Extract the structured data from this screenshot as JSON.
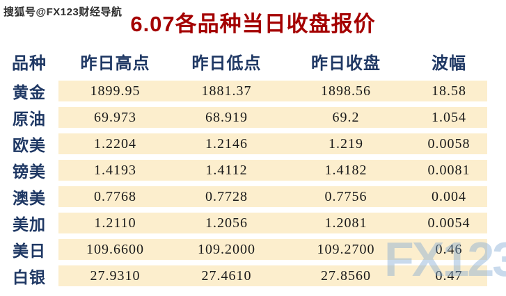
{
  "header": {
    "watermark_top": "搜狐号@FX123财经导航",
    "title": "6.07各品种当日收盘报价"
  },
  "watermark_logo": "FX123",
  "chart_data": {
    "type": "table",
    "title": "6.07各品种当日收盘报价",
    "columns": [
      "品种",
      "昨日高点",
      "昨日低点",
      "昨日收盘",
      "波幅"
    ],
    "rows": [
      [
        "黄金",
        "1899.95",
        "1881.37",
        "1898.56",
        "18.58"
      ],
      [
        "原油",
        "69.973",
        "68.919",
        "69.2",
        "1.054"
      ],
      [
        "欧美",
        "1.2204",
        "1.2146",
        "1.219",
        "0.0058"
      ],
      [
        "镑美",
        "1.4193",
        "1.4112",
        "1.4182",
        "0.0081"
      ],
      [
        "澳美",
        "0.7768",
        "0.7728",
        "0.7756",
        "0.004"
      ],
      [
        "美加",
        "1.2110",
        "1.2056",
        "1.2081",
        "0.0054"
      ],
      [
        "美日",
        "109.6600",
        "109.2000",
        "109.2700",
        "0.46"
      ],
      [
        "白银",
        "27.9310",
        "27.4610",
        "27.8560",
        "0.47"
      ]
    ],
    "layout": {
      "stripe_rows": true,
      "label_column_background": "#ffffff",
      "stripe_background": "#fceecd"
    }
  },
  "colors": {
    "title_red": "#a40000",
    "header_navy": "#1f3864",
    "row_stripe": "#fceecd",
    "number_black": "#1a1a1a",
    "watermark_blue": "#7fa9d2",
    "page_background": "#ffffff"
  }
}
